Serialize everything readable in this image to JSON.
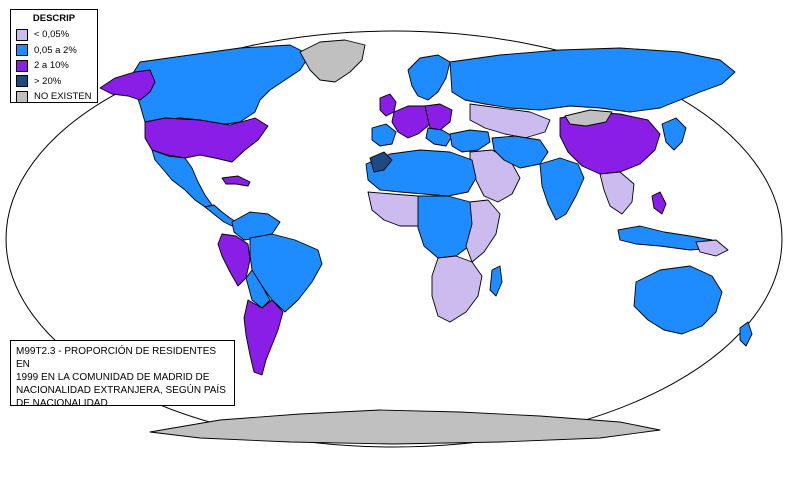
{
  "legend": {
    "title": "DESCRIP",
    "items": [
      {
        "label": "< 0,05%",
        "color": "#ccbbee"
      },
      {
        "label": "0,05 a 2%",
        "color": "#1e8cff"
      },
      {
        "label": "2  a 10%",
        "color": "#8a1ee6"
      },
      {
        "label": "> 20%",
        "color": "#1e4a82"
      },
      {
        "label": "NO EXISTEN",
        "color": "#c0c0c0"
      }
    ]
  },
  "caption": {
    "lines": [
      "M99T2.3 - PROPORCIÓN DE RESIDENTES EN",
      "1999 EN LA COMUNIDAD DE MADRID DE",
      "NACIONALIDAD EXTRANJERA, SEGÚN PAÍS",
      "DE NACIONALIDAD"
    ]
  },
  "colors": {
    "background": "#ffffff",
    "outline": "#000000"
  }
}
